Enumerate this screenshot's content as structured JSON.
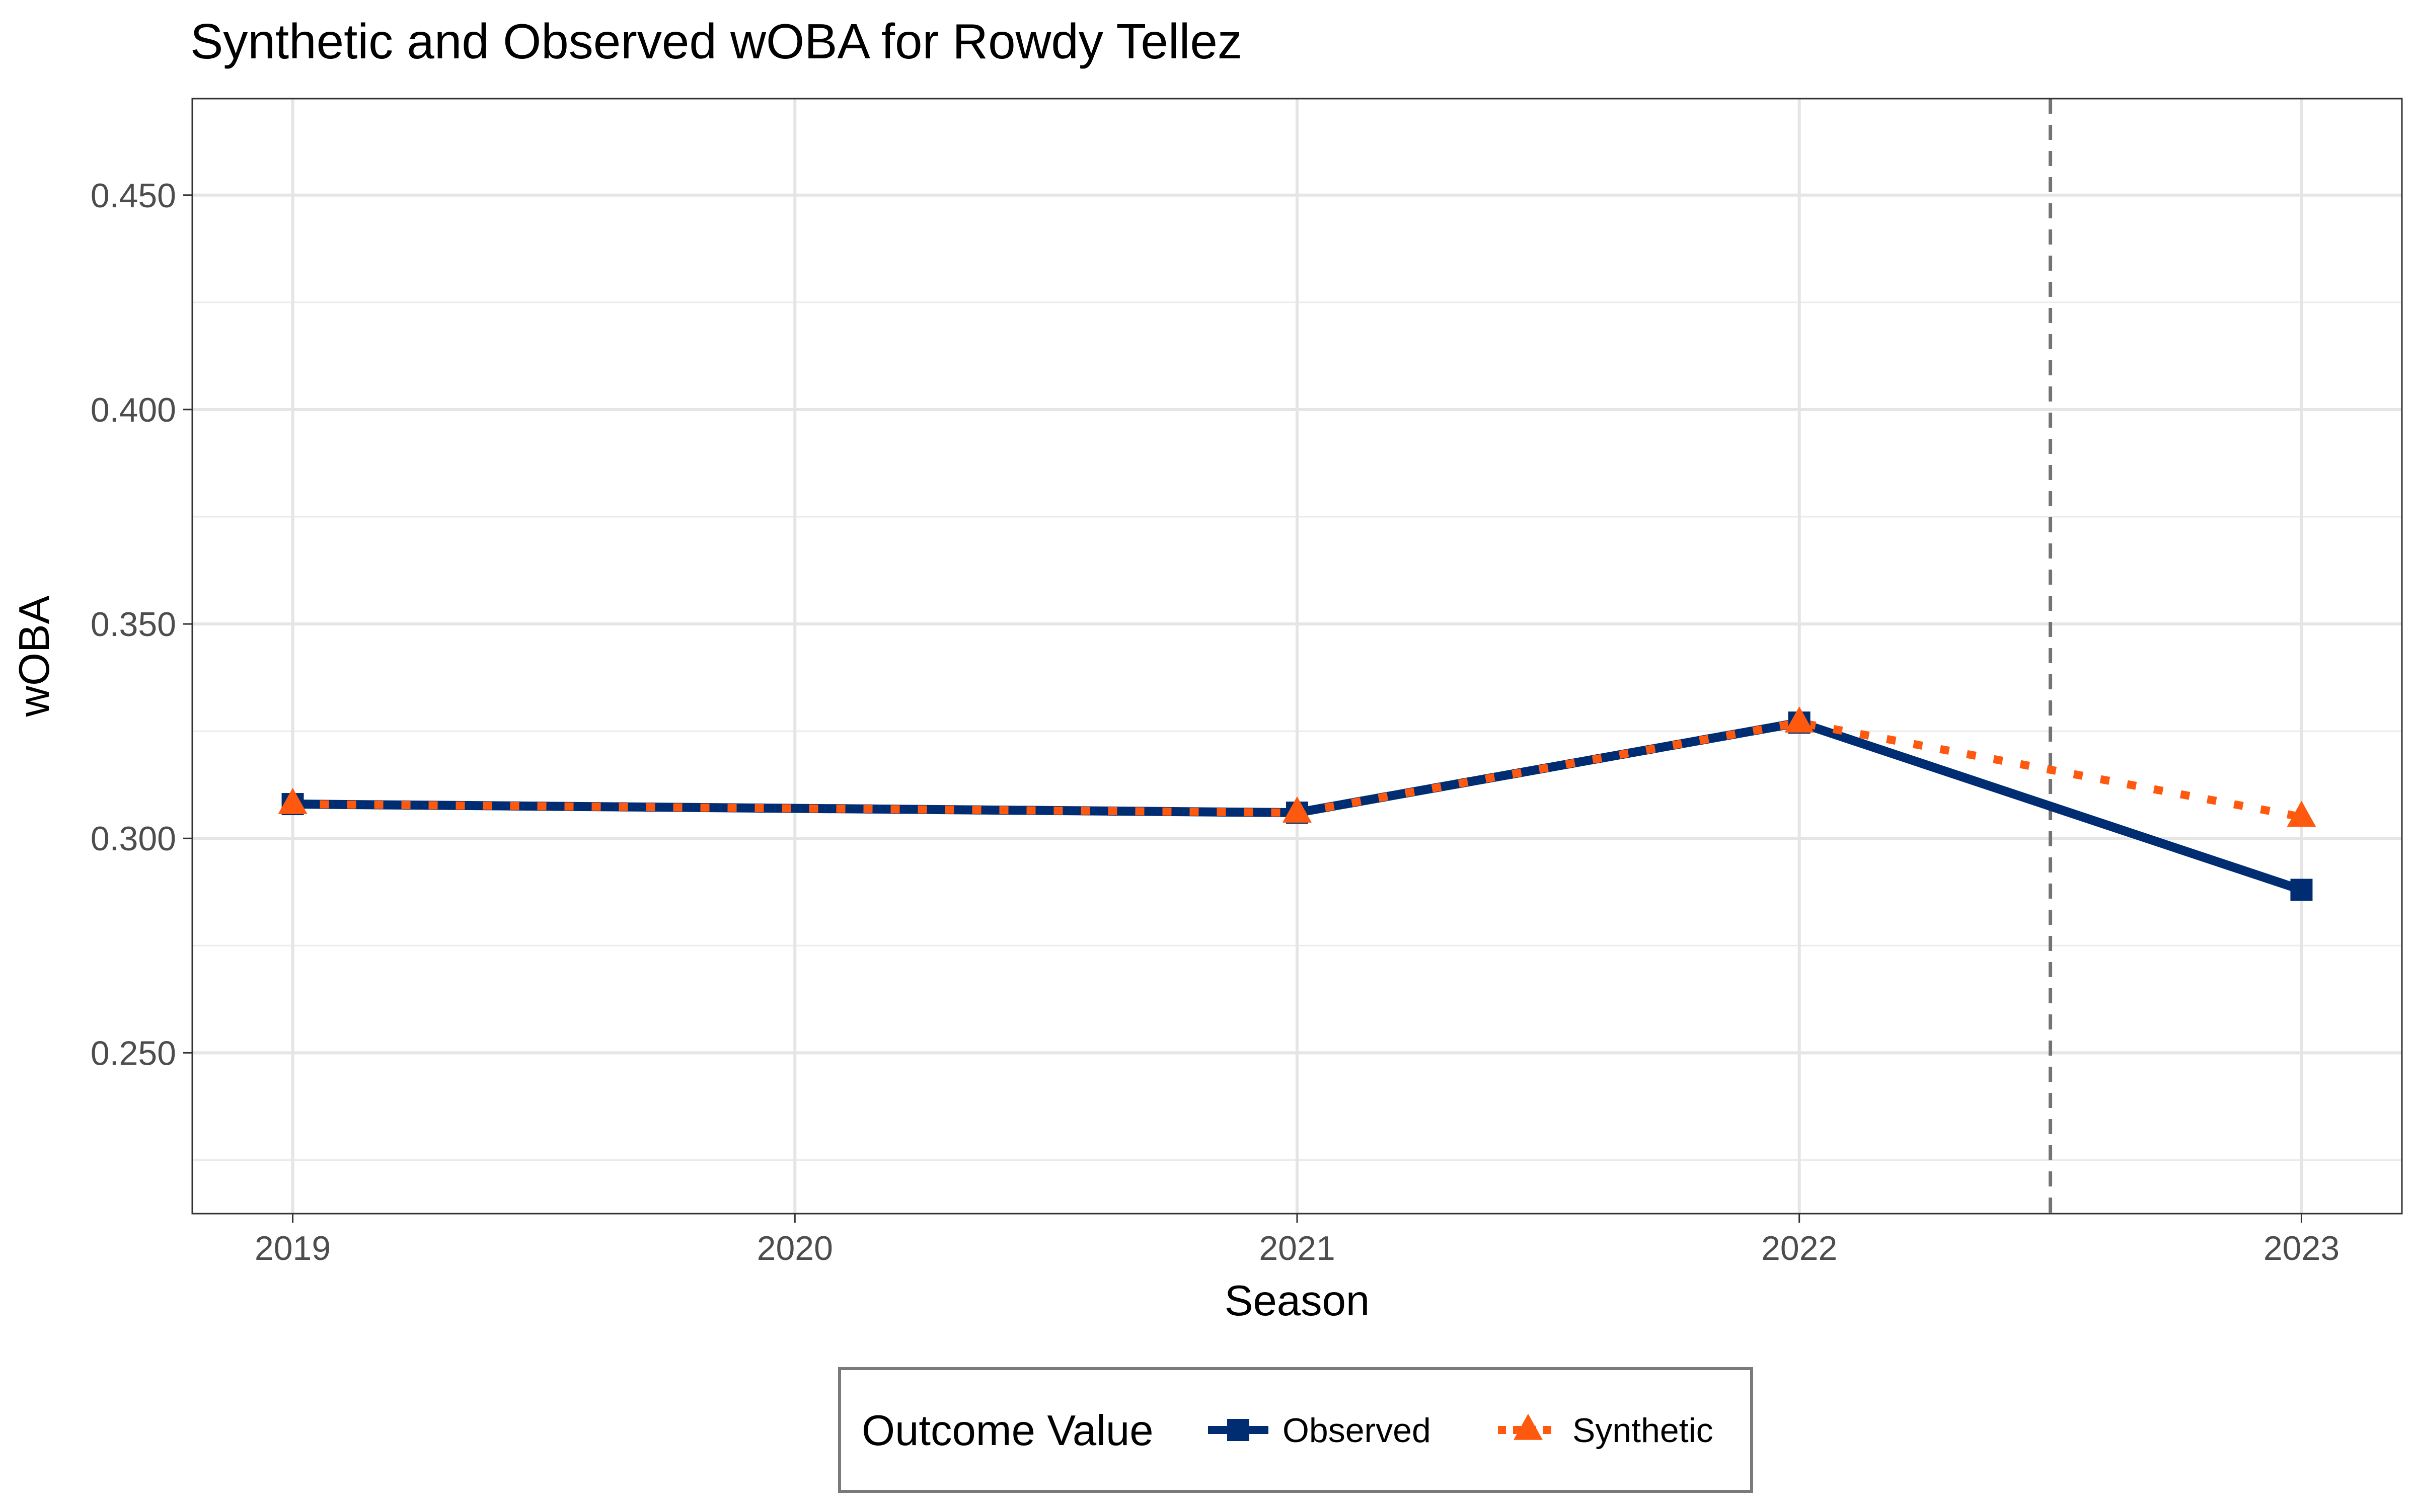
{
  "chart_data": {
    "type": "line",
    "title": "Synthetic and Observed wOBA for Rowdy Tellez",
    "xlabel": "Season",
    "ylabel": "wOBA",
    "x": [
      2019,
      2020,
      2021,
      2022,
      2023
    ],
    "x_tick_labels": [
      "2019",
      "2020",
      "2021",
      "2022",
      "2023"
    ],
    "xlim": [
      2018.8,
      2023.2
    ],
    "ylim": [
      0.2125,
      0.4725
    ],
    "y_ticks": [
      0.25,
      0.3,
      0.35,
      0.4,
      0.45
    ],
    "y_tick_labels": [
      "0.250",
      "0.300",
      "0.350",
      "0.400",
      "0.450"
    ],
    "y_minor_ticks": [
      0.225,
      0.275,
      0.325,
      0.375,
      0.425
    ],
    "grid": true,
    "treatment_line_x": 2022.5,
    "series": [
      {
        "name": "Observed",
        "x": [
          2019,
          2021,
          2022,
          2023
        ],
        "values": [
          0.308,
          0.306,
          0.327,
          0.288
        ],
        "color": "#002D72",
        "line_style": "solid",
        "marker": "square"
      },
      {
        "name": "Synthetic",
        "x": [
          2019,
          2021,
          2022,
          2023
        ],
        "values": [
          0.308,
          0.306,
          0.327,
          0.305
        ],
        "color": "#FF5910",
        "line_style": "dotted",
        "marker": "triangle"
      }
    ],
    "legend": {
      "title": "Outcome Value",
      "position": "bottom"
    }
  }
}
